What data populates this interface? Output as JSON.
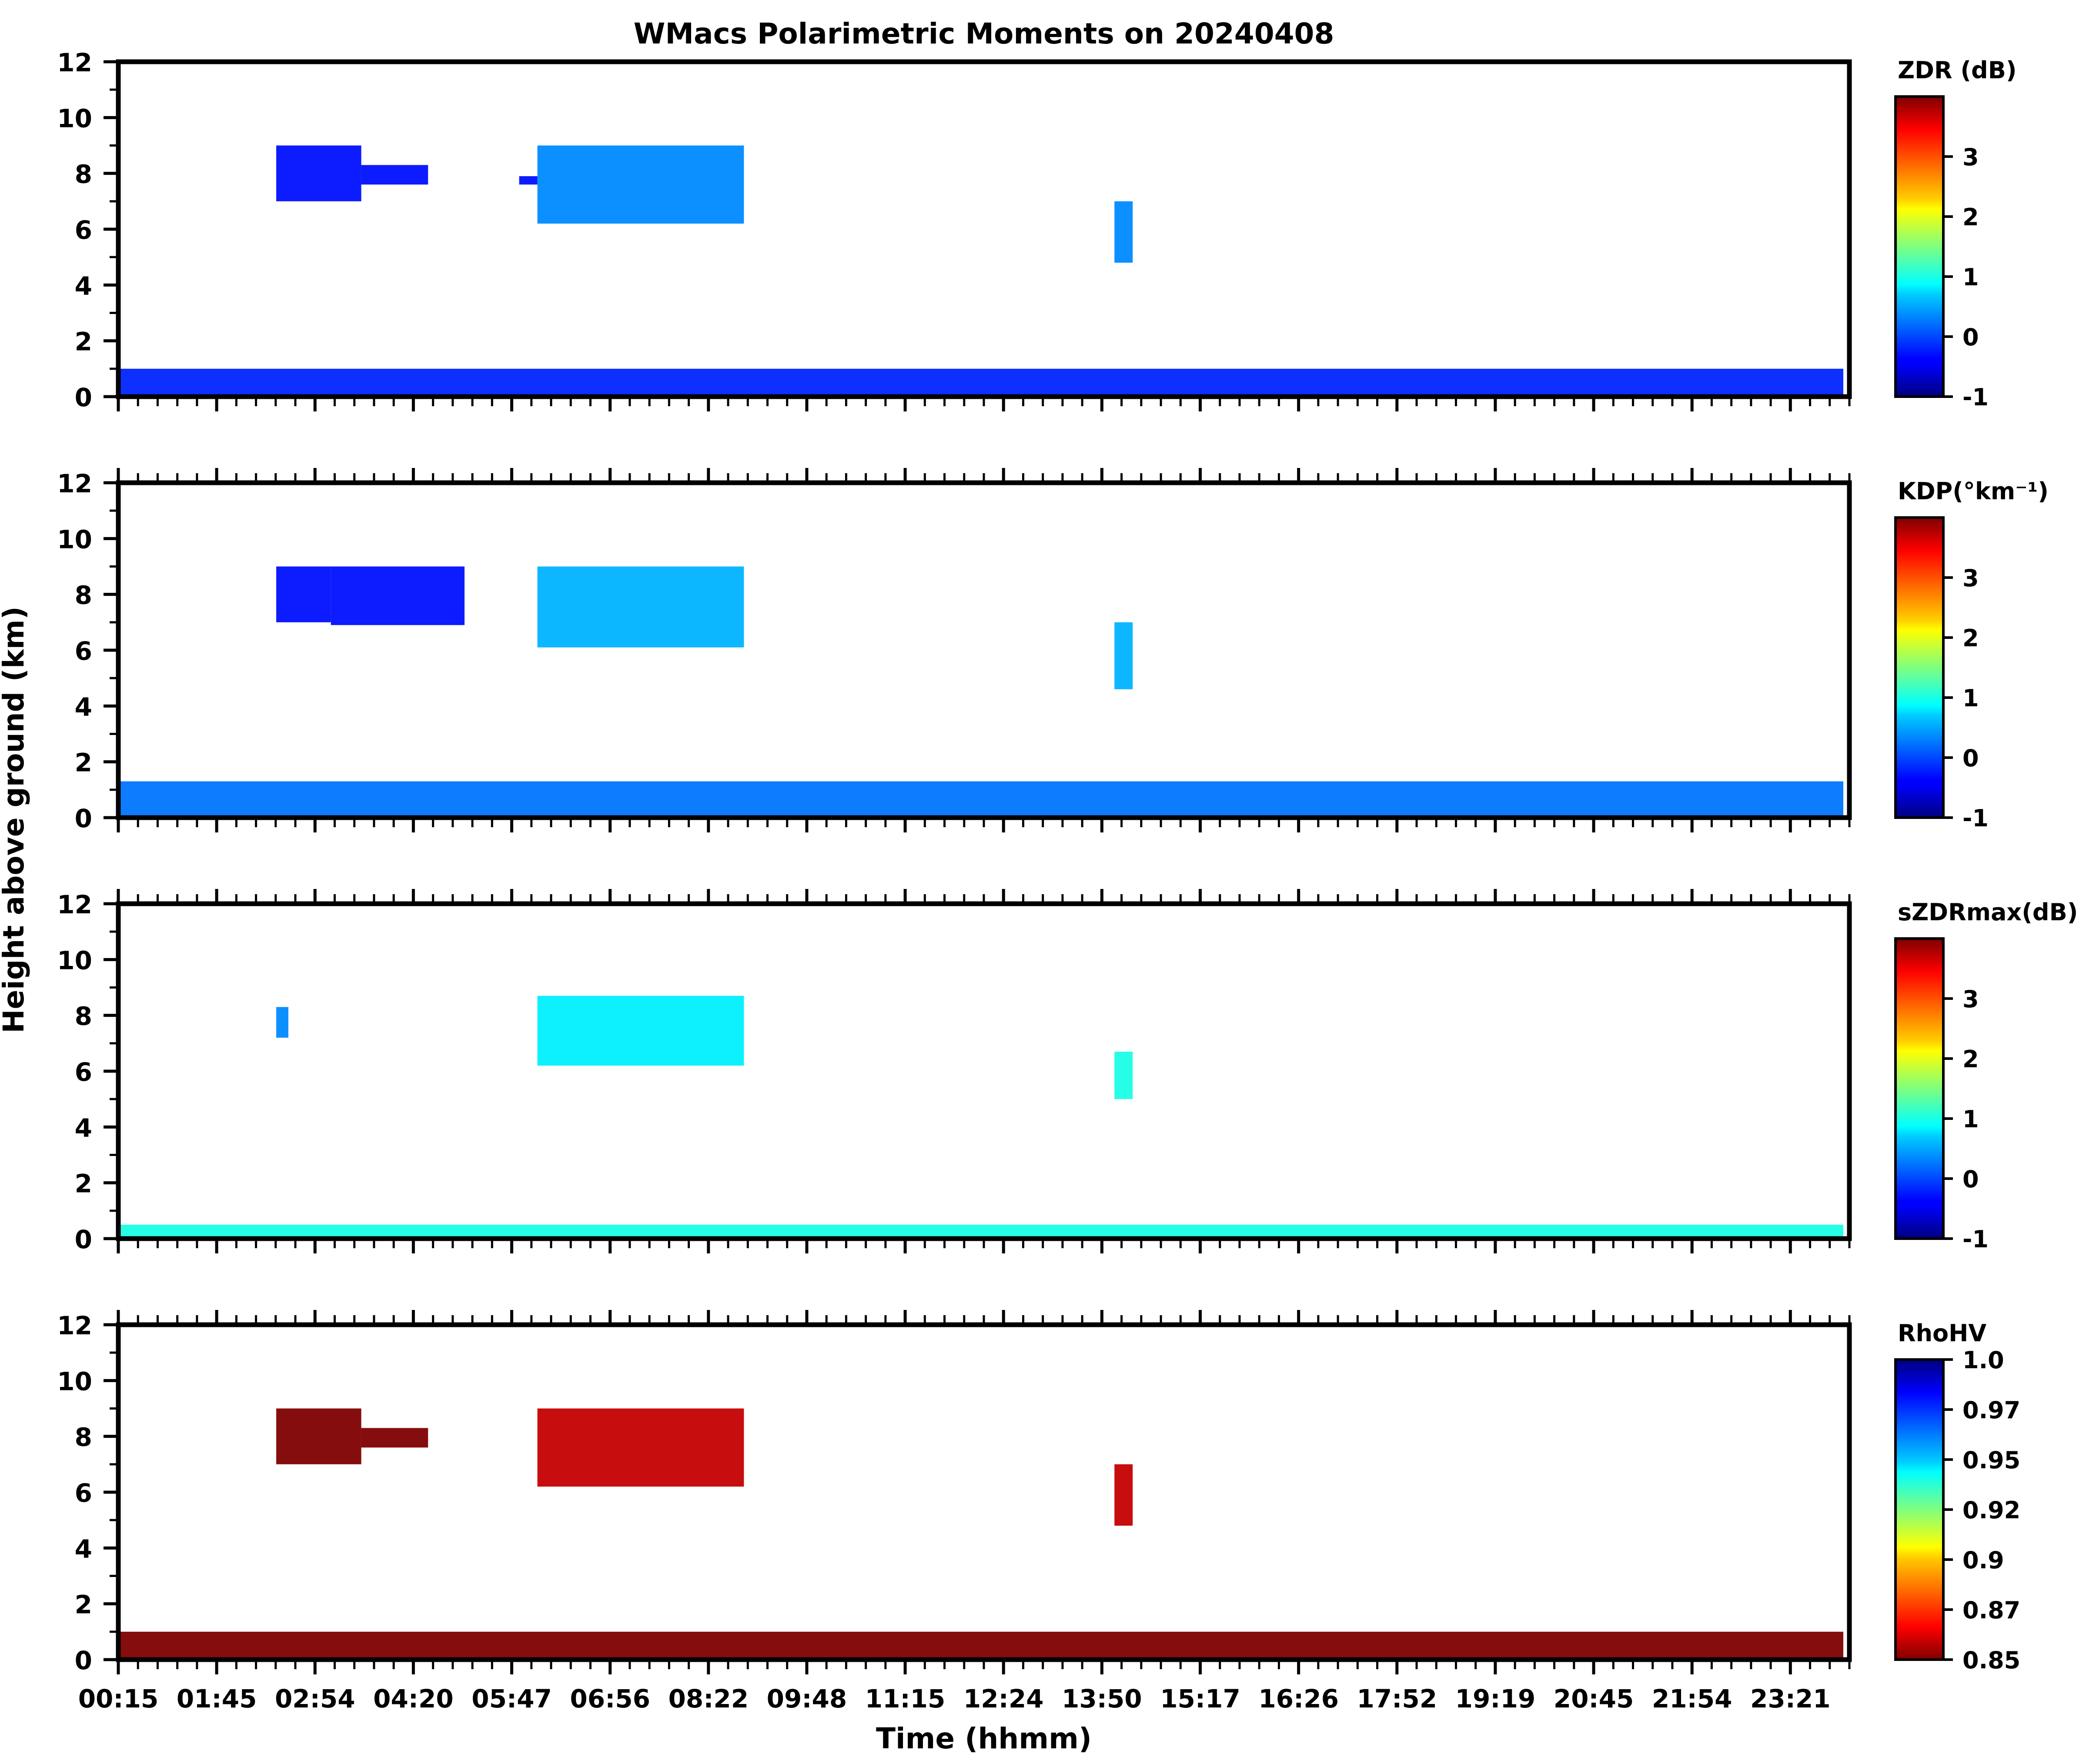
{
  "figure": {
    "title": "WMacs Polarimetric Moments on 20240408",
    "ylabel": "Height above ground (km)",
    "xlabel": "Time (hhmm)",
    "xtick_labels": [
      "00:15",
      "01:45",
      "02:54",
      "04:20",
      "05:47",
      "06:56",
      "08:22",
      "09:48",
      "11:15",
      "12:24",
      "13:50",
      "15:17",
      "16:26",
      "17:52",
      "19:19",
      "20:45",
      "21:54",
      "23:21"
    ]
  },
  "chart_data": [
    {
      "type": "heatmap",
      "variable": "ZDR",
      "colorbar_label": "ZDR (dB)",
      "colorbar_ticks": [
        "3",
        "2",
        "1",
        "0",
        "-1"
      ],
      "colorbar_range": [
        -1,
        4
      ],
      "colormap": "jet",
      "xlim_hours": [
        0.25,
        24.0
      ],
      "ylim": [
        0,
        12
      ],
      "ytick_labels": [
        "0",
        "2",
        "4",
        "6",
        "8",
        "10",
        "12"
      ],
      "regions": [
        {
          "time": [
            "02:25",
            "03:35"
          ],
          "height_km": [
            7.0,
            9.0
          ],
          "value": -0.3
        },
        {
          "time": [
            "03:35",
            "04:30"
          ],
          "height_km": [
            7.6,
            8.3
          ],
          "value": -0.3
        },
        {
          "time": [
            "05:45",
            "06:00"
          ],
          "height_km": [
            7.6,
            7.9
          ],
          "value": -0.3
        },
        {
          "time": [
            "06:00",
            "08:50"
          ],
          "height_km": [
            6.2,
            9.0
          ],
          "value": 0.3
        },
        {
          "time": [
            "13:55",
            "14:10"
          ],
          "height_km": [
            4.8,
            7.0
          ],
          "value": 0.3
        },
        {
          "time": [
            "00:15",
            "23:55"
          ],
          "height_km": [
            0.0,
            1.0
          ],
          "value": -0.2
        }
      ]
    },
    {
      "type": "heatmap",
      "variable": "KDP",
      "colorbar_label": "KDP(°km⁻¹)",
      "colorbar_ticks": [
        "3",
        "2",
        "1",
        "0",
        "-1"
      ],
      "colorbar_range": [
        -1,
        4
      ],
      "colormap": "jet",
      "xlim_hours": [
        0.25,
        24.0
      ],
      "ylim": [
        0,
        12
      ],
      "ytick_labels": [
        "0",
        "2",
        "4",
        "6",
        "8",
        "10",
        "12"
      ],
      "regions": [
        {
          "time": [
            "02:25",
            "03:10"
          ],
          "height_km": [
            7.0,
            9.0
          ],
          "value": -0.3
        },
        {
          "time": [
            "03:10",
            "05:00"
          ],
          "height_km": [
            6.9,
            9.0
          ],
          "value": -0.3
        },
        {
          "time": [
            "06:00",
            "08:50"
          ],
          "height_km": [
            6.1,
            9.0
          ],
          "value": 0.5
        },
        {
          "time": [
            "13:55",
            "14:10"
          ],
          "height_km": [
            4.6,
            7.0
          ],
          "value": 0.5
        },
        {
          "time": [
            "00:15",
            "23:55"
          ],
          "height_km": [
            0.0,
            1.3
          ],
          "value": 0.2
        }
      ]
    },
    {
      "type": "heatmap",
      "variable": "sZDRmax",
      "colorbar_label": "sZDRmax(dB)",
      "colorbar_ticks": [
        "3",
        "2",
        "1",
        "0",
        "-1"
      ],
      "colorbar_range": [
        -1,
        4
      ],
      "colormap": "jet",
      "xlim_hours": [
        0.25,
        24.0
      ],
      "ylim": [
        0,
        12
      ],
      "ytick_labels": [
        "0",
        "2",
        "4",
        "6",
        "8",
        "10",
        "12"
      ],
      "regions": [
        {
          "time": [
            "02:25",
            "02:35"
          ],
          "height_km": [
            7.2,
            8.3
          ],
          "value": 0.3
        },
        {
          "time": [
            "06:00",
            "08:50"
          ],
          "height_km": [
            6.2,
            8.7
          ],
          "value": 0.8
        },
        {
          "time": [
            "13:55",
            "14:10"
          ],
          "height_km": [
            5.0,
            6.7
          ],
          "value": 1.0
        },
        {
          "time": [
            "00:15",
            "23:55"
          ],
          "height_km": [
            0.0,
            0.5
          ],
          "value": 1.0
        }
      ]
    },
    {
      "type": "heatmap",
      "variable": "RhoHV",
      "colorbar_label": "RhoHV",
      "colorbar_ticks": [
        "1.0",
        "0.97",
        "0.95",
        "0.92",
        "0.9",
        "0.87",
        "0.85"
      ],
      "colorbar_range": [
        0.85,
        1.0
      ],
      "colormap": "jet_r",
      "xlim_hours": [
        0.25,
        24.0
      ],
      "ylim": [
        0,
        12
      ],
      "ytick_labels": [
        "0",
        "2",
        "4",
        "6",
        "8",
        "10",
        "12"
      ],
      "regions": [
        {
          "time": [
            "02:25",
            "03:35"
          ],
          "height_km": [
            7.0,
            9.0
          ],
          "value": 0.85
        },
        {
          "time": [
            "03:35",
            "04:30"
          ],
          "height_km": [
            7.6,
            8.3
          ],
          "value": 0.85
        },
        {
          "time": [
            "06:00",
            "08:50"
          ],
          "height_km": [
            6.2,
            9.0
          ],
          "value": 0.86
        },
        {
          "time": [
            "13:55",
            "14:10"
          ],
          "height_km": [
            4.8,
            7.0
          ],
          "value": 0.86
        },
        {
          "time": [
            "00:15",
            "23:55"
          ],
          "height_km": [
            0.0,
            1.0
          ],
          "value": 0.85
        }
      ]
    }
  ]
}
